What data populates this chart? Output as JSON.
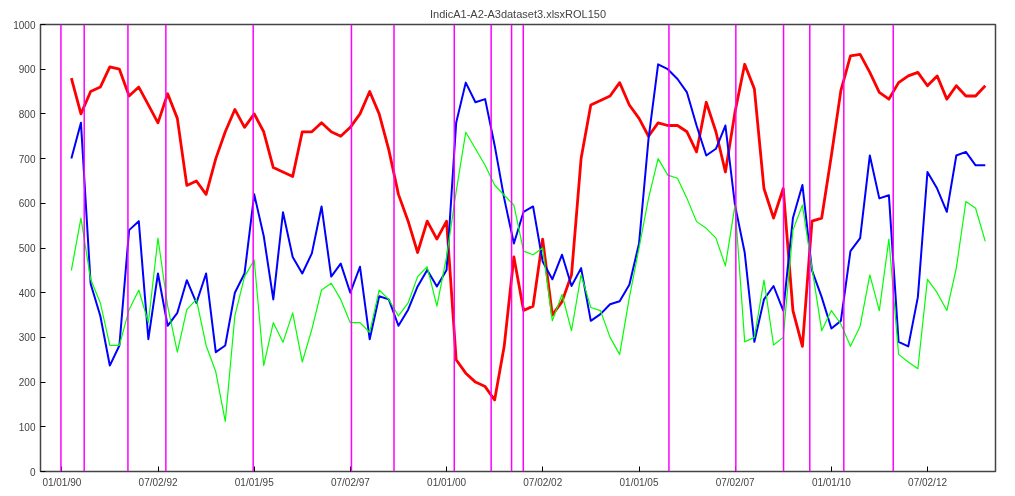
{
  "chart_data": {
    "type": "line",
    "title": "IndicA1-A2-A3dataset3.xlsxROL150",
    "x": [
      "1990-04",
      "1990-07",
      "1990-10",
      "1991-01",
      "1991-04",
      "1991-07",
      "1991-10",
      "1992-01",
      "1992-04",
      "1992-07",
      "1992-10",
      "1993-01",
      "1993-04",
      "1993-07",
      "1993-10",
      "1994-01",
      "1994-04",
      "1994-07",
      "1994-10",
      "1995-01",
      "1995-04",
      "1995-07",
      "1995-10",
      "1996-01",
      "1996-04",
      "1996-07",
      "1996-10",
      "1997-01",
      "1997-04",
      "1997-07",
      "1997-10",
      "1998-01",
      "1998-04",
      "1998-07",
      "1998-10",
      "1999-01",
      "1999-04",
      "1999-07",
      "1999-10",
      "2000-01",
      "2000-04",
      "2000-07",
      "2000-10",
      "2001-01",
      "2001-04",
      "2001-07",
      "2001-10",
      "2002-01",
      "2002-04",
      "2002-07",
      "2002-10",
      "2003-01",
      "2003-04",
      "2003-07",
      "2003-10",
      "2004-01",
      "2004-04",
      "2004-07",
      "2004-10",
      "2005-01",
      "2005-04",
      "2005-07",
      "2005-10",
      "2006-01",
      "2006-04",
      "2006-07",
      "2006-10",
      "2007-01",
      "2007-04",
      "2007-07",
      "2007-10",
      "2008-01",
      "2008-04",
      "2008-07",
      "2008-10",
      "2009-01",
      "2009-04",
      "2009-07",
      "2009-10",
      "2010-01",
      "2010-04",
      "2010-07",
      "2010-10",
      "2011-01",
      "2011-04",
      "2011-07",
      "2011-10",
      "2012-01",
      "2012-04",
      "2012-07",
      "2012-10",
      "2013-01",
      "2013-04",
      "2013-07",
      "2013-10",
      "2014-01"
    ],
    "series": [
      {
        "color": "#ff0000",
        "values": [
          880,
          800,
          850,
          860,
          905,
          900,
          840,
          860,
          820,
          780,
          845,
          790,
          640,
          650,
          620,
          700,
          760,
          810,
          770,
          800,
          760,
          680,
          670,
          660,
          760,
          760,
          780,
          760,
          750,
          770,
          800,
          850,
          800,
          720,
          620,
          560,
          490,
          560,
          520,
          560,
          250,
          220,
          200,
          190,
          160,
          280,
          480,
          360,
          370,
          520,
          350,
          380,
          440,
          700,
          820,
          830,
          840,
          870,
          820,
          790,
          750,
          780,
          774,
          774,
          760,
          715,
          826,
          760,
          670,
          804,
          911,
          856,
          633,
          567,
          633,
          360,
          280,
          560,
          567,
          707,
          852,
          930,
          933,
          893,
          848,
          833,
          870,
          885,
          893,
          863,
          885,
          833,
          863,
          840,
          840,
          863
        ]
      },
      {
        "color": "#0000ff",
        "values": [
          700,
          780,
          420,
          348,
          237,
          282,
          540,
          560,
          296,
          443,
          326,
          355,
          428,
          377,
          443,
          267,
          282,
          400,
          443,
          620,
          527,
          385,
          580,
          480,
          443,
          488,
          593,
          436,
          465,
          400,
          458,
          296,
          392,
          385,
          326,
          362,
          414,
          451,
          414,
          451,
          780,
          870,
          826,
          833,
          730,
          611,
          510,
          581,
          593,
          470,
          430,
          485,
          415,
          455,
          337,
          352,
          374,
          381,
          418,
          510,
          744,
          911,
          900,
          878,
          848,
          774,
          707,
          722,
          774,
          596,
          490,
          290,
          385,
          415,
          360,
          567,
          641,
          450,
          390,
          320,
          337,
          493,
          522,
          707,
          611,
          618,
          290,
          280,
          390,
          670,
          633,
          581,
          707,
          715,
          685,
          685
        ]
      },
      {
        "color": "#00ff00",
        "values": [
          450,
          567,
          430,
          377,
          282,
          282,
          362,
          406,
          333,
          522,
          370,
          267,
          362,
          385,
          282,
          223,
          112,
          348,
          436,
          473,
          237,
          333,
          289,
          355,
          245,
          318,
          406,
          421,
          385,
          333,
          333,
          311,
          406,
          385,
          348,
          377,
          436,
          458,
          370,
          480,
          626,
          759,
          722,
          685,
          641,
          618,
          596,
          493,
          485,
          500,
          337,
          396,
          315,
          440,
          367,
          360,
          300,
          262,
          389,
          500,
          611,
          700,
          663,
          656,
          611,
          559,
          544,
          522,
          460,
          596,
          290,
          300,
          428,
          283,
          300,
          540,
          596,
          455,
          315,
          360,
          330,
          280,
          325,
          440,
          360,
          520,
          262,
          245,
          230,
          430,
          400,
          360,
          455,
          604,
          589,
          515
        ]
      }
    ],
    "xlim": [
      "1989-06-12",
      "2014-04-08"
    ],
    "xticks": [
      {
        "value": "1990-01-01",
        "label": "01/01/90"
      },
      {
        "value": "1992-07-02",
        "label": "07/02/92"
      },
      {
        "value": "1995-01-01",
        "label": "01/01/95"
      },
      {
        "value": "1997-07-02",
        "label": "07/02/97"
      },
      {
        "value": "2000-01-01",
        "label": "01/01/00"
      },
      {
        "value": "2002-07-02",
        "label": "07/02/02"
      },
      {
        "value": "2005-01-01",
        "label": "01/01/05"
      },
      {
        "value": "2007-07-02",
        "label": "07/02/07"
      },
      {
        "value": "2010-01-01",
        "label": "01/01/10"
      },
      {
        "value": "2012-07-02",
        "label": "07/02/12"
      }
    ],
    "ylim": [
      0,
      1000
    ],
    "yticks": [
      0,
      100,
      200,
      300,
      400,
      500,
      600,
      700,
      800,
      900,
      1000
    ],
    "ref_lines": [
      {
        "axis": "x",
        "value": "1989-12-23",
        "color": "#ff00ff"
      },
      {
        "axis": "x",
        "value": "1990-08-01",
        "color": "#ff00ff"
      },
      {
        "axis": "x",
        "value": "1991-09-20",
        "color": "#ff00ff"
      },
      {
        "axis": "x",
        "value": "1992-09-14",
        "color": "#ff00ff"
      },
      {
        "axis": "x",
        "value": "1994-12-22",
        "color": "#ff00ff"
      },
      {
        "axis": "x",
        "value": "1997-07-12",
        "color": "#ff00ff"
      },
      {
        "axis": "x",
        "value": "1998-08-20",
        "color": "#ff00ff"
      },
      {
        "axis": "x",
        "value": "2000-03-14",
        "color": "#ff00ff"
      },
      {
        "axis": "x",
        "value": "2001-02-27",
        "color": "#ff00ff"
      },
      {
        "axis": "x",
        "value": "2001-09-09",
        "color": "#ff00ff"
      },
      {
        "axis": "x",
        "value": "2001-12-29",
        "color": "#ff00ff"
      },
      {
        "axis": "x",
        "value": "2005-10-12",
        "color": "#ff00ff"
      },
      {
        "axis": "x",
        "value": "2007-07-09",
        "color": "#ff00ff"
      },
      {
        "axis": "x",
        "value": "2008-10-04",
        "color": "#ff00ff"
      },
      {
        "axis": "x",
        "value": "2009-06-10",
        "color": "#ff00ff"
      },
      {
        "axis": "x",
        "value": "2010-04-29",
        "color": "#ff00ff"
      },
      {
        "axis": "x",
        "value": "2011-08-11",
        "color": "#ff00ff"
      }
    ],
    "line_style": "solid"
  }
}
